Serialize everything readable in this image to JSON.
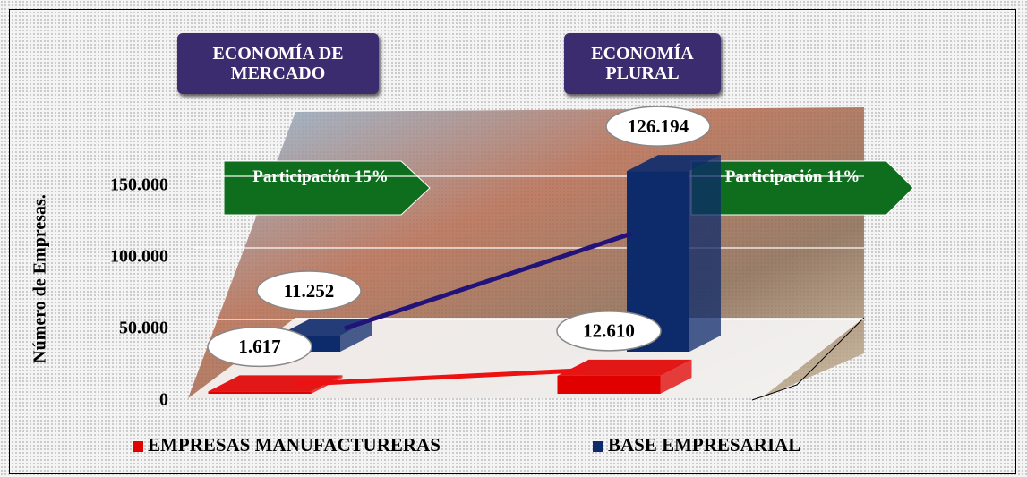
{
  "chart_data": {
    "type": "bar",
    "y_label": "Número de Empresas.",
    "categories": [
      "ECONOMÍA DE MERCADO",
      "ECONOMÍA PLURAL"
    ],
    "series": [
      {
        "name": "EMPRESAS MANUFACTURERAS",
        "color": "#e00000",
        "values": [
          1617,
          12610
        ],
        "value_labels": [
          "1.617",
          "12.610"
        ]
      },
      {
        "name": "BASE EMPRESARIAL",
        "color": "#0d2a6b",
        "values": [
          11252,
          126194
        ],
        "value_labels": [
          "11.252",
          "126.194"
        ]
      }
    ],
    "annotations": [
      "Participación 15%",
      "Participación 11%"
    ],
    "ylim": [
      0,
      175000
    ],
    "yticks": [
      0,
      {
        "value": 50000,
        "label": "50.000"
      },
      {
        "value": 100000,
        "label": "100.000"
      },
      {
        "value": 150000,
        "label": "150.000"
      }
    ],
    "grid": true
  }
}
